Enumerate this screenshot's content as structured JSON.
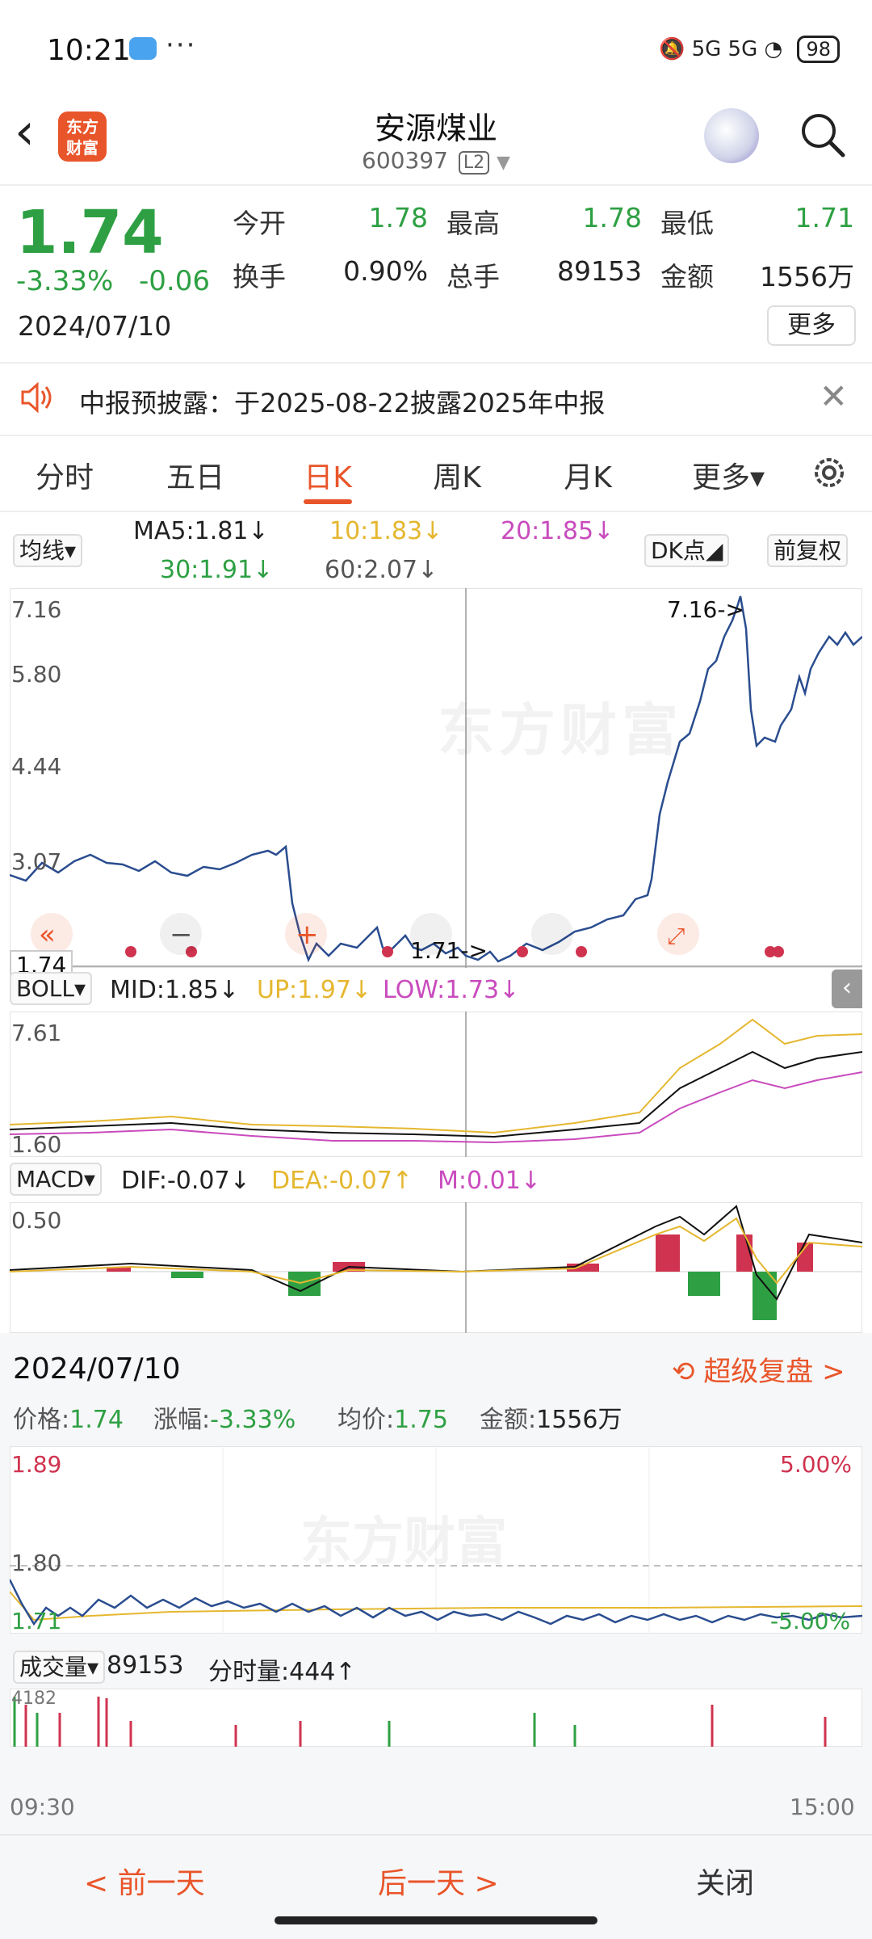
{
  "status": {
    "time": "10:21",
    "battery": "98",
    "network": "5G 5G"
  },
  "header": {
    "title": "安源煤业",
    "code": "600397",
    "level": "L2",
    "logo_text": "东方财富"
  },
  "quote": {
    "price": "1.74",
    "pct_change": "-3.33%",
    "change": "-0.06",
    "date": "2024/07/10",
    "open_label": "今开",
    "open": "1.78",
    "high_label": "最高",
    "high": "1.78",
    "low_label": "最低",
    "low": "1.71",
    "turnover_label": "换手",
    "turnover": "0.90%",
    "volume_label": "总手",
    "volume": "89153",
    "amount_label": "金额",
    "amount": "1556万",
    "more": "更多"
  },
  "notice": {
    "text": "中报预披露：于2025-08-22披露2025年中报"
  },
  "tabs": [
    {
      "label": "分时"
    },
    {
      "label": "五日"
    },
    {
      "label": "日K"
    },
    {
      "label": "周K"
    },
    {
      "label": "月K"
    },
    {
      "label": "更多▾"
    }
  ],
  "ma": {
    "selector": "均线▾",
    "ma5": "MA5:1.81↓",
    "ma10": "10:1.83↓",
    "ma20": "20:1.85↓",
    "ma30": "30:1.91↓",
    "ma60": "60:2.07↓",
    "dk": "DK点◢",
    "adjust": "前复权"
  },
  "kline": {
    "y_labels": [
      "7.16",
      "5.80",
      "4.44",
      "3.07"
    ],
    "max_annot": "7.16->",
    "min_annot": "1.71->",
    "current": "1.74",
    "watermark": "东方财富"
  },
  "boll": {
    "selector": "BOLL▾",
    "mid": "MID:1.85↓",
    "up": "UP:1.97↓",
    "low": "LOW:1.73↓",
    "top": "7.61",
    "bottom": "1.60"
  },
  "macd": {
    "selector": "MACD▾",
    "dif": "DIF:-0.07↓",
    "dea": "DEA:-0.07↑",
    "m": "M:0.01↓",
    "top": "0.50"
  },
  "detail": {
    "date": "2024/07/10",
    "replay": "超级复盘 >",
    "price_label": "价格:",
    "price": "1.74",
    "chg_label": "涨幅:",
    "chg": "-3.33%",
    "avg_label": "均价:",
    "avg": "1.75",
    "amount_label": "金额:",
    "amount": "1556万",
    "y_top": "1.89",
    "y_mid": "1.80",
    "y_bottom": "1.71",
    "pct_top": "5.00%",
    "pct_bottom": "-5.00%",
    "vol_selector": "成交量▾",
    "vol": "89153",
    "tick_vol": "分时量:444↑",
    "vol_axis": "4182",
    "t_start": "09:30",
    "t_end": "15:00"
  },
  "bottom": {
    "prev": "< 前一天",
    "next": "后一天 >",
    "close": "关闭"
  },
  "colors": {
    "up": "#d0334f",
    "down": "#2ea043",
    "accent": "#e9552a",
    "line": "#2a4d8f"
  }
}
